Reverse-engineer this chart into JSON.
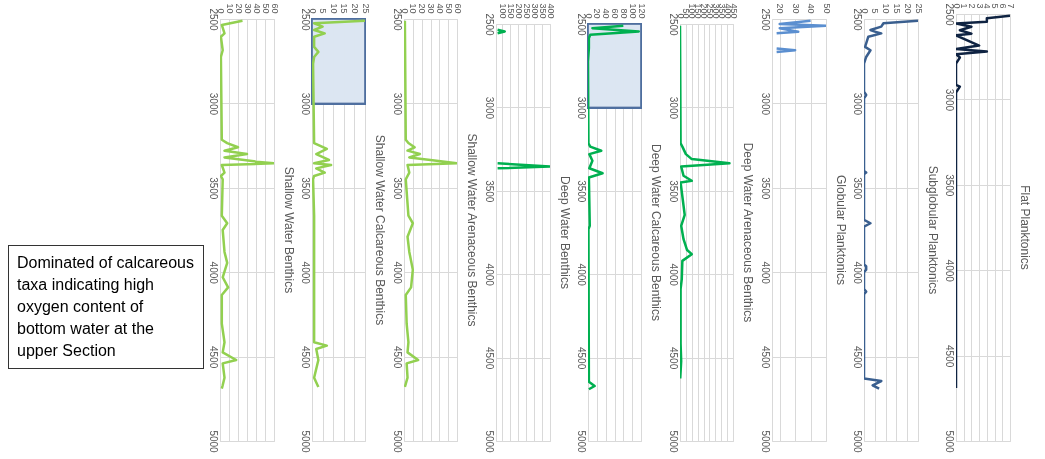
{
  "chart_data": [
    {
      "type": "other",
      "annotations": [
        "Dominated of calcareous taxa indicating high oxygen content of bottom water at the upper Section"
      ]
    },
    {
      "type": "line",
      "title": "Shallow Water Benthics",
      "orientation": "horizontal",
      "color": "#92d050",
      "grid": true,
      "xlim": [
        0,
        60
      ],
      "xticks": [
        0,
        10,
        20,
        30,
        40,
        50,
        60
      ],
      "ylim": [
        5000,
        2500
      ],
      "yticks": [
        2500,
        3000,
        3500,
        4000,
        4500,
        5000
      ],
      "x": [
        2510,
        2535,
        2585,
        2605,
        2685,
        2725,
        3215,
        3235,
        3260,
        3280,
        3300,
        3320,
        3345,
        3355,
        3365,
        3410,
        3430,
        3450,
        3665,
        3710,
        3750,
        3880,
        3945,
        4030,
        4090,
        4135,
        4305,
        4415,
        4475,
        4520,
        4540,
        4625,
        4670,
        4690
      ],
      "values": [
        25,
        2,
        5,
        1,
        3,
        1,
        2,
        8,
        20,
        5,
        30,
        5,
        40,
        60,
        2,
        5,
        1,
        3,
        2,
        8,
        3,
        5,
        8,
        3,
        9,
        2,
        2,
        5,
        3,
        18,
        3,
        5,
        3,
        2
      ]
    },
    {
      "type": "line",
      "title": "Shallow Water Calcareous Benthics",
      "orientation": "horizontal",
      "color": "#92d050",
      "grid": true,
      "xlim": [
        0,
        25
      ],
      "xticks": [
        0,
        5,
        10,
        15,
        20,
        25
      ],
      "ylim": [
        5000,
        2500
      ],
      "yticks": [
        2500,
        3000,
        3500,
        4000,
        4500,
        5000
      ],
      "bands": [
        {
          "axis": "y",
          "from": 2500,
          "to": 3000,
          "color": "#dce6f2"
        }
      ],
      "x": [
        2510,
        2525,
        2545,
        2565,
        2585,
        2605,
        2665,
        2695,
        2725,
        2765,
        3235,
        3270,
        3300,
        3335,
        3355,
        3365,
        3385,
        3410,
        3430,
        3450,
        3665,
        4415,
        4435,
        4455,
        4520,
        4625,
        4680
      ],
      "values": [
        25,
        1,
        5,
        1,
        6,
        1,
        1,
        3,
        1,
        0.5,
        1,
        7,
        2,
        8,
        1,
        9,
        2,
        6,
        1,
        0.5,
        1,
        1,
        7,
        2,
        3,
        1,
        3
      ]
    },
    {
      "type": "line",
      "title": "Shallow Water Arenaceous Benthics",
      "orientation": "horizontal",
      "color": "#92d050",
      "grid": true,
      "xlim": [
        0,
        60
      ],
      "xticks": [
        0,
        10,
        20,
        30,
        40,
        50,
        60
      ],
      "ylim": [
        5000,
        2500
      ],
      "yticks": [
        2500,
        3000,
        3500,
        4000,
        4500,
        5000
      ],
      "x": [
        2510,
        3215,
        3235,
        3260,
        3280,
        3300,
        3320,
        3335,
        3355,
        3365,
        3410,
        3450,
        3665,
        3710,
        3790,
        3880,
        3985,
        4090,
        4135,
        4305,
        4415,
        4475,
        4520,
        4540,
        4625,
        4680
      ],
      "values": [
        1,
        2,
        5,
        12,
        4,
        18,
        6,
        30,
        60,
        4,
        6,
        2,
        5,
        10,
        4,
        6,
        10,
        8,
        2,
        3,
        5,
        4,
        16,
        3,
        4,
        1
      ]
    },
    {
      "type": "line",
      "title": "Deep Water Benthics",
      "orientation": "horizontal",
      "color": "#00b050",
      "grid": true,
      "xlim": [
        60,
        400
      ],
      "xticks": [
        100,
        150,
        200,
        250,
        300,
        350,
        400
      ],
      "ylim": [
        5000,
        2500
      ],
      "yticks": [
        2500,
        3000,
        3500,
        4000,
        4500,
        5000
      ],
      "x": [
        2535,
        2545,
        2555,
        2565,
        3335,
        3355,
        3365
      ],
      "values": [
        70,
        115,
        70,
        null,
        70,
        400,
        70
      ]
    },
    {
      "type": "line",
      "title": "Deep Water Calcareous Benthics",
      "orientation": "horizontal",
      "color": "#00b050",
      "grid": true,
      "xlim": [
        0,
        120
      ],
      "xticks": [
        0,
        20,
        40,
        60,
        80,
        100,
        120
      ],
      "ylim": [
        5000,
        2500
      ],
      "yticks": [
        2500,
        3000,
        3500,
        4000,
        4500,
        5000
      ],
      "bands": [
        {
          "axis": "y",
          "from": 2500,
          "to": 3000,
          "color": "#dce6f2"
        }
      ],
      "x": [
        2510,
        2525,
        2545,
        2565,
        2585,
        2645,
        2725,
        3215,
        3235,
        3260,
        3280,
        3320,
        3365,
        3395,
        3420,
        3710,
        3730,
        4645,
        4670,
        4690
      ],
      "values": [
        80,
        10,
        115,
        5,
        2,
        2,
        0,
        1,
        5,
        30,
        3,
        10,
        3,
        33,
        2,
        4,
        1,
        2,
        15,
        2
      ]
    },
    {
      "type": "line",
      "title": "Deep Water Arenaceous Benthics",
      "orientation": "horizontal",
      "color": "#00b050",
      "grid": true,
      "xlim": [
        0,
        450
      ],
      "xticks": [
        0,
        50,
        100,
        150,
        200,
        250,
        300,
        350,
        400,
        450
      ],
      "ylim": [
        5000,
        2500
      ],
      "yticks": [
        2500,
        3000,
        3500,
        4000,
        4500,
        5000
      ],
      "x": [
        2510,
        3215,
        3235,
        3280,
        3310,
        3335,
        3355,
        3410,
        3440,
        3450,
        3645,
        3710,
        3790,
        3855,
        3880,
        3920,
        4030,
        4090,
        4415,
        4520,
        4625
      ],
      "values": [
        0,
        5,
        20,
        50,
        100,
        420,
        10,
        30,
        100,
        5,
        40,
        10,
        30,
        60,
        100,
        20,
        15,
        5,
        5,
        10,
        2
      ]
    },
    {
      "type": "line",
      "title": "Globular Planktonics",
      "orientation": "horizontal",
      "color": "#5b8fd0",
      "grid": true,
      "xlim": [
        15,
        50
      ],
      "xticks": [
        20,
        30,
        40,
        50
      ],
      "ylim": [
        5000,
        2500
      ],
      "yticks": [
        2500,
        3000,
        3500,
        4000,
        4500,
        5000
      ],
      "x": [
        2510,
        2530,
        2540,
        2555,
        2575,
        2585,
        2600,
        2675,
        2685,
        2695
      ],
      "values": [
        40,
        20,
        50,
        20,
        32,
        18,
        null,
        18,
        30,
        18
      ]
    },
    {
      "type": "line",
      "title": "Subglobular Planktonics",
      "orientation": "horizontal",
      "color": "#3a5f8f",
      "grid": true,
      "xlim": [
        0,
        25
      ],
      "xticks": [
        0,
        5,
        10,
        15,
        20,
        25
      ],
      "ylim": [
        5000,
        2500
      ],
      "yticks": [
        2500,
        3000,
        3500,
        4000,
        4500,
        5000
      ],
      "x": [
        2510,
        2525,
        2545,
        2565,
        2575,
        2585,
        2605,
        2665,
        2685,
        2725,
        2765,
        2930,
        2950,
        2970,
        3400,
        3410,
        3420,
        3690,
        3710,
        3730,
        3955,
        3965,
        3985,
        4000,
        4100,
        4115,
        4130,
        4630,
        4645,
        4670,
        4690
      ],
      "values": [
        25,
        9,
        8,
        3,
        5,
        8,
        2,
        0.5,
        3,
        1,
        0,
        0,
        1,
        0,
        0,
        1,
        0,
        0,
        3,
        0,
        0,
        1,
        1,
        0,
        0,
        1,
        0,
        0,
        8,
        4,
        7
      ]
    },
    {
      "type": "line",
      "title": "Flat Planktonics",
      "orientation": "horizontal",
      "color": "#0f2342",
      "grid": true,
      "xlim": [
        0,
        7
      ],
      "xticks": [
        0,
        1,
        2,
        3,
        4,
        5,
        6,
        7
      ],
      "ylim": [
        5000,
        2500
      ],
      "yticks": [
        2500,
        3000,
        3500,
        4000,
        4500,
        5000
      ],
      "x": [
        2510,
        2525,
        2545,
        2555,
        2575,
        2595,
        2615,
        2625,
        2685,
        2705,
        2720,
        2735,
        2755,
        2790,
        2915,
        2925,
        2960,
        4690
      ],
      "values": [
        7,
        4,
        4,
        0,
        2,
        0.5,
        2,
        0,
        3,
        0,
        4,
        0,
        0.5,
        0,
        0,
        0.5,
        0,
        0
      ]
    }
  ]
}
